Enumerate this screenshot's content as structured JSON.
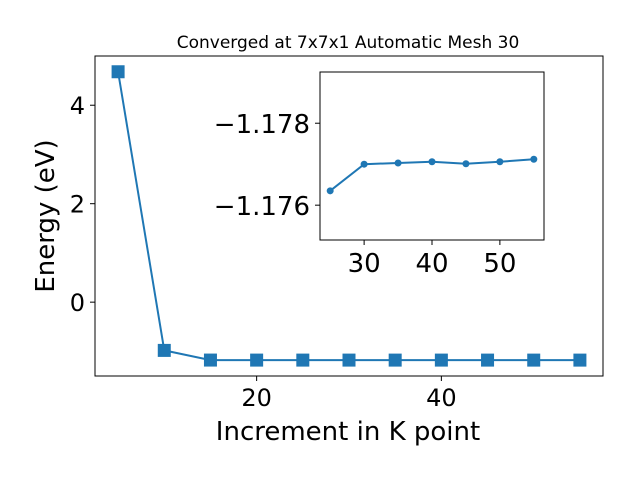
{
  "chart_data": [
    {
      "type": "line",
      "title": "Converged at 7x7x1 Automatic Mesh 30",
      "xlabel": "Increment in K point",
      "ylabel": "Energy (eV)",
      "xlim": [
        2.5,
        57.5
      ],
      "ylim": [
        -1.5,
        5.0
      ],
      "x_ticks": [
        20,
        40
      ],
      "y_ticks": [
        0,
        2,
        4
      ],
      "marker": "square",
      "grid": false,
      "series": [
        {
          "color": "#1f77b4",
          "x": [
            5,
            10,
            15,
            20,
            25,
            30,
            35,
            40,
            45,
            50,
            55
          ],
          "y": [
            4.68,
            -0.98,
            -1.1764,
            -1.177,
            -1.177,
            -1.177,
            -1.1771,
            -1.177,
            -1.1771,
            -1.1772,
            -1.1772
          ]
        }
      ]
    },
    {
      "type": "line",
      "title": "",
      "xlabel": "",
      "ylabel": "",
      "xlim": [
        23.5,
        56.5
      ],
      "ylim": [
        -1.17515,
        -1.17925
      ],
      "x_ticks": [
        30,
        40,
        50
      ],
      "y_ticks": [
        -1.178,
        -1.176
      ],
      "y_tick_labels": [
        "−1.178",
        "−1.176"
      ],
      "y_axis_inverted": true,
      "marker": "circle",
      "grid": false,
      "series": [
        {
          "color": "#1f77b4",
          "x": [
            25,
            30,
            35,
            40,
            45,
            50,
            55
          ],
          "y": [
            -1.17635,
            -1.177,
            -1.17703,
            -1.17706,
            -1.17701,
            -1.17706,
            -1.17712
          ]
        }
      ]
    }
  ]
}
